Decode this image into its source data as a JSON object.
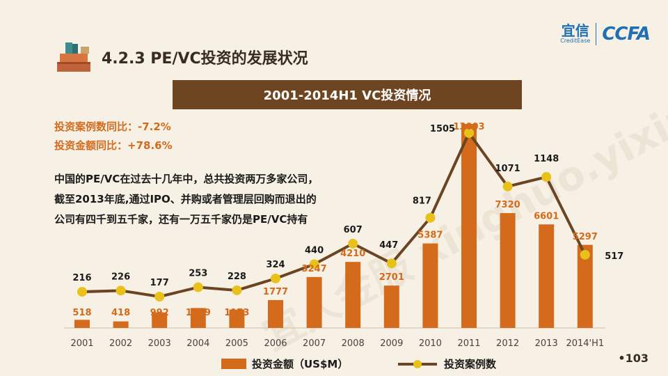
{
  "header": {
    "title": "4.2.3 PE/VC投资的发展状况",
    "logo_cn": "宜信",
    "logo_en": "CreditEase",
    "logo_ccfa": "CCFA"
  },
  "banner": "2001-2014H1 VC投资情况",
  "yoy_count": "投资案例数同比：-7.2%",
  "yoy_amount": "投资金额同比：+78.6%",
  "description": "中国的PE/VC在过去十几年中，总共投资两万多家公司，截至2013年底,通过IPO、并购或者管理层回购而退出的公司有四千到五千家，还有一万五千家仍是PE/VC持有",
  "watermark": "宜人金服 xinghuo.yixin.com",
  "page_number": "•103",
  "colors": {
    "bar": "#d46a1c",
    "line": "#6b4424",
    "marker": "#e8c21a",
    "bar_label": "#d46a1c",
    "line_label": "#1a1a1a"
  },
  "chart_data": {
    "type": "bar",
    "categories": [
      "2001",
      "2002",
      "2003",
      "2004",
      "2005",
      "2006",
      "2007",
      "2008",
      "2009",
      "2010",
      "2011",
      "2012",
      "2013",
      "2014'H1"
    ],
    "series": [
      {
        "name": "投资金额（US$M）",
        "type": "bar",
        "values": [
          518,
          418,
          992,
          1269,
          1173,
          1777,
          3247,
          4210,
          2701,
          5387,
          13003,
          7320,
          6601,
          5297
        ]
      },
      {
        "name": "投资案例数",
        "type": "line",
        "values": [
          216,
          226,
          177,
          253,
          228,
          324,
          440,
          607,
          447,
          817,
          1505,
          1071,
          1148,
          517
        ]
      }
    ],
    "legend": "bottom",
    "grid": false
  }
}
